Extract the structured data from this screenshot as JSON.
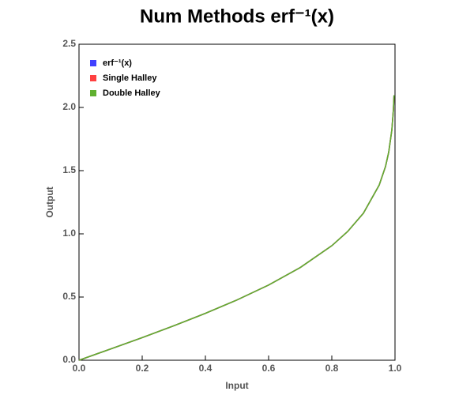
{
  "chart_data": {
    "type": "line",
    "title": "Num Methods erf⁻¹(x)",
    "xlabel": "Input",
    "ylabel": "Output",
    "x": [
      0,
      0.1,
      0.2,
      0.3,
      0.4,
      0.5,
      0.6,
      0.7,
      0.8,
      0.85,
      0.9,
      0.95,
      0.97,
      0.98,
      0.99,
      0.995,
      0.997
    ],
    "series": [
      {
        "name": "erf⁻¹(x)",
        "color": "#4040ff",
        "values": [
          0,
          0.089,
          0.179,
          0.273,
          0.371,
          0.477,
          0.595,
          0.733,
          0.906,
          1.018,
          1.163,
          1.386,
          1.533,
          1.645,
          1.821,
          1.985,
          2.097
        ]
      },
      {
        "name": "Single Halley",
        "color": "#ff4040",
        "values": [
          0,
          0.089,
          0.179,
          0.273,
          0.371,
          0.477,
          0.595,
          0.733,
          0.906,
          1.018,
          1.163,
          1.386,
          1.533,
          1.645,
          1.821,
          1.985,
          2.097
        ]
      },
      {
        "name": "Double Halley",
        "color": "#60b030",
        "values": [
          0,
          0.089,
          0.179,
          0.273,
          0.371,
          0.477,
          0.595,
          0.733,
          0.906,
          1.018,
          1.163,
          1.386,
          1.533,
          1.645,
          1.821,
          1.985,
          2.097
        ]
      }
    ],
    "xlim": [
      0,
      1
    ],
    "ylim": [
      0,
      2.5
    ],
    "xticks": [
      {
        "value": 0,
        "label": "0.0"
      },
      0.2,
      0.4,
      0.6,
      0.8,
      {
        "value": 1,
        "label": "1.0"
      }
    ],
    "yticks": [
      {
        "value": 0,
        "label": "0.0"
      },
      0.5,
      {
        "value": 1,
        "label": "1.0"
      },
      1.5,
      {
        "value": 2,
        "label": "2.0"
      },
      2.5
    ],
    "legend": "upper left"
  }
}
